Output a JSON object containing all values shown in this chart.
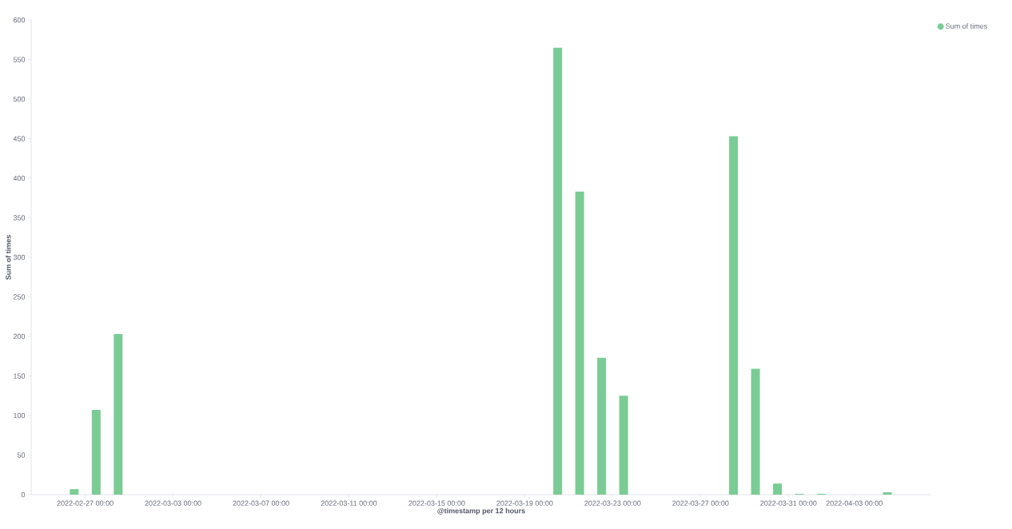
{
  "chart_data": {
    "type": "bar",
    "xlabel": "@timestamp per 12 hours",
    "ylabel": "Sum of times",
    "x": [
      "2022-02-26T12:00",
      "2022-02-27T12:00",
      "2022-02-28T12:00",
      "2022-03-20T12:00",
      "2022-03-21T12:00",
      "2022-03-22T12:00",
      "2022-03-23T12:00",
      "2022-03-28T12:00",
      "2022-03-29T12:00",
      "2022-03-30T12:00",
      "2022-03-31T12:00",
      "2022-04-01T12:00",
      "2022-04-04T12:00"
    ],
    "series": [
      {
        "name": "Sum of times",
        "color": "#7acc94",
        "values": [
          7,
          107,
          203,
          565,
          383,
          173,
          125,
          453,
          159,
          14,
          1,
          1,
          3
        ]
      }
    ],
    "xlim": [
      "2022-02-24T13:00",
      "2022-04-06T12:00"
    ],
    "xticks": [
      {
        "value": "2022-02-27",
        "label": "2022-02-27 00:00"
      },
      {
        "value": "2022-03-03",
        "label": "2022-03-03 00:00"
      },
      {
        "value": "2022-03-07",
        "label": "2022-03-07 00:00"
      },
      {
        "value": "2022-03-11",
        "label": "2022-03-11 00:00"
      },
      {
        "value": "2022-03-15",
        "label": "2022-03-15 00:00"
      },
      {
        "value": "2022-03-19",
        "label": "2022-03-19 00:00"
      },
      {
        "value": "2022-03-23",
        "label": "2022-03-23 00:00"
      },
      {
        "value": "2022-03-27",
        "label": "2022-03-27 00:00"
      },
      {
        "value": "2022-03-31",
        "label": "2022-03-31 00:00"
      },
      {
        "value": "2022-04-03",
        "label": "2022-04-03 00:00"
      }
    ],
    "ylim": [
      0,
      600
    ],
    "yticks": [
      0,
      50,
      100,
      150,
      200,
      250,
      300,
      350,
      400,
      450,
      500,
      550,
      600
    ],
    "legend": "top right"
  }
}
